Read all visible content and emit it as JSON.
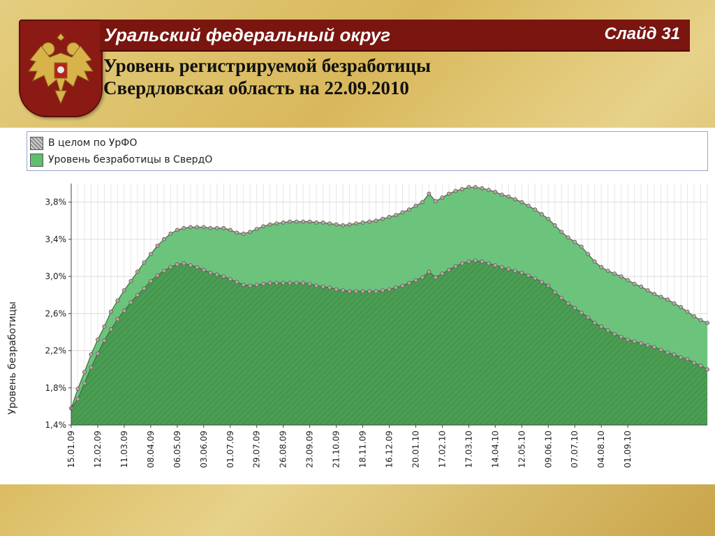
{
  "header": {
    "region": "Уральский федеральный округ",
    "slide": "Слайд 31",
    "title_line1": "Уровень регистрируемой безработицы",
    "title_line2": "Свердловская область на 22.09.2010"
  },
  "emblem": {
    "icon": "russian-coat-of-arms-icon"
  },
  "colors": {
    "banner": "#7a1510",
    "sverd_fill": "#6cc47c",
    "urfo_fill": "#4a9d52",
    "marker": "#b7a7a7"
  },
  "chart_data": {
    "type": "area",
    "ylabel": "Уровень безработицы",
    "ylim": [
      1.4,
      4.0
    ],
    "yticks": [
      "1,4%",
      "1,8%",
      "2,2%",
      "2,6%",
      "3,0%",
      "3,4%",
      "3,8%"
    ],
    "ytick_values": [
      1.4,
      1.8,
      2.2,
      2.6,
      3.0,
      3.4,
      3.8
    ],
    "xtick_labels": [
      "15.01.09",
      "12.02.09",
      "11.03.09",
      "08.04.09",
      "06.05.09",
      "03.06.09",
      "01.07.09",
      "29.07.09",
      "26.08.09",
      "23.09.09",
      "21.10.09",
      "18.11.09",
      "16.12.09",
      "20.01.10",
      "17.02.10",
      "17.03.10",
      "14.04.10",
      "12.05.10",
      "09.06.10",
      "07.07.10",
      "04.08.10",
      "01.09.10"
    ],
    "grid": true,
    "legend_position": "top",
    "series": [
      {
        "name": "В целом по УрФО",
        "values": [
          1.58,
          1.68,
          1.85,
          2.02,
          2.17,
          2.31,
          2.43,
          2.54,
          2.63,
          2.72,
          2.8,
          2.87,
          2.95,
          3.01,
          3.06,
          3.1,
          3.13,
          3.14,
          3.12,
          3.1,
          3.07,
          3.04,
          3.02,
          3.0,
          2.97,
          2.94,
          2.91,
          2.9,
          2.91,
          2.92,
          2.93,
          2.93,
          2.93,
          2.93,
          2.93,
          2.93,
          2.92,
          2.9,
          2.89,
          2.88,
          2.86,
          2.85,
          2.84,
          2.84,
          2.84,
          2.84,
          2.84,
          2.85,
          2.86,
          2.88,
          2.9,
          2.93,
          2.96,
          2.99,
          3.05,
          2.99,
          3.03,
          3.07,
          3.11,
          3.14,
          3.16,
          3.17,
          3.16,
          3.14,
          3.12,
          3.1,
          3.08,
          3.06,
          3.04,
          3.01,
          2.98,
          2.94,
          2.9,
          2.83,
          2.77,
          2.71,
          2.66,
          2.61,
          2.56,
          2.5,
          2.46,
          2.42,
          2.38,
          2.35,
          2.32,
          2.3,
          2.28,
          2.26,
          2.24,
          2.21,
          2.18,
          2.16,
          2.13,
          2.11,
          2.07,
          2.04,
          2.0
        ]
      },
      {
        "name": "Уровень безработицы в СвердО",
        "values": [
          1.58,
          1.79,
          1.97,
          2.16,
          2.32,
          2.46,
          2.62,
          2.74,
          2.85,
          2.95,
          3.05,
          3.15,
          3.24,
          3.33,
          3.4,
          3.46,
          3.5,
          3.52,
          3.53,
          3.53,
          3.53,
          3.52,
          3.52,
          3.52,
          3.5,
          3.47,
          3.46,
          3.48,
          3.51,
          3.54,
          3.56,
          3.57,
          3.58,
          3.59,
          3.59,
          3.59,
          3.59,
          3.58,
          3.58,
          3.57,
          3.56,
          3.55,
          3.56,
          3.57,
          3.58,
          3.59,
          3.6,
          3.62,
          3.64,
          3.66,
          3.69,
          3.72,
          3.76,
          3.8,
          3.89,
          3.81,
          3.85,
          3.89,
          3.92,
          3.94,
          3.96,
          3.96,
          3.95,
          3.93,
          3.91,
          3.88,
          3.86,
          3.83,
          3.8,
          3.76,
          3.72,
          3.67,
          3.62,
          3.55,
          3.48,
          3.42,
          3.37,
          3.32,
          3.24,
          3.16,
          3.1,
          3.06,
          3.03,
          3.0,
          2.96,
          2.92,
          2.89,
          2.85,
          2.81,
          2.78,
          2.75,
          2.71,
          2.67,
          2.62,
          2.57,
          2.53,
          2.5
        ]
      }
    ]
  }
}
